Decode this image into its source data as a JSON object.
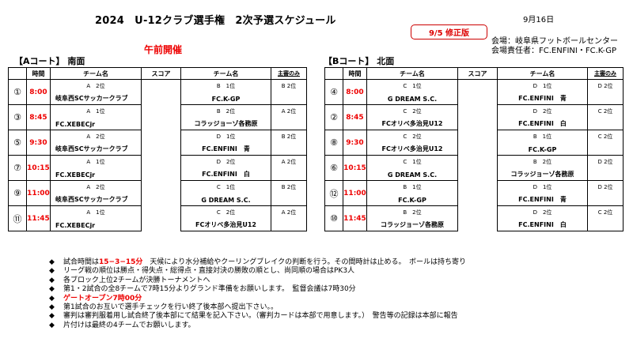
{
  "header": {
    "title": "2024　U-12クラブ選手権　2次予選スケジュール",
    "revision": "9/5 修正版",
    "date": "9月16日",
    "venue": "会場：岐阜県フットボールセンター",
    "manager": "会場責任者：FC.ENFINI・FC.K-GP",
    "morning": "午前開催"
  },
  "columns": {
    "time": "時間",
    "team": "チーム名",
    "score": "スコア",
    "referee": "主審のみ"
  },
  "court_a": {
    "label": "【Aコート】 南面",
    "rows": [
      {
        "num": "①",
        "time": "8:00",
        "seed1": "A　2位",
        "team1": "岐阜西SCサッカークラブ",
        "seed2": "B　1位",
        "team2": "FC.K-GP",
        "ref": "B 2位"
      },
      {
        "num": "③",
        "time": "8:45",
        "seed1": "A　1位",
        "team1": "FC.XEBECjr",
        "seed2": "B　2位",
        "team2": "コラッジョーゾ各務原",
        "ref": "A 2位"
      },
      {
        "num": "⑤",
        "time": "9:30",
        "seed1": "A　2位",
        "team1": "岐阜西SCサッカークラブ",
        "seed2": "D　1位",
        "team2": "FC.ENFINI　青",
        "ref": "B 2位"
      },
      {
        "num": "⑦",
        "time": "10:15",
        "seed1": "A　1位",
        "team1": "FC.XEBECjr",
        "seed2": "D　2位",
        "team2": "FC.ENFINI　白",
        "ref": "A 2位"
      },
      {
        "num": "⑨",
        "time": "11:00",
        "seed1": "A　2位",
        "team1": "岐阜西SCサッカークラブ",
        "seed2": "C　1位",
        "team2": "G DREAM S.C.",
        "ref": "B 2位"
      },
      {
        "num": "⑪",
        "time": "11:45",
        "seed1": "A　1位",
        "team1": "FC.XEBECjr",
        "seed2": "C　2位",
        "team2": "FCオリベ多治見U12",
        "ref": "A 2位"
      }
    ]
  },
  "court_b": {
    "label": "【Bコート】 北面",
    "rows": [
      {
        "num": "④",
        "time": "8:00",
        "seed1": "C　1位",
        "team1": "G DREAM S.C.",
        "seed2": "D　1位",
        "team2": "FC.ENFINI　青",
        "ref": "D 2位"
      },
      {
        "num": "②",
        "time": "8:45",
        "seed1": "C　2位",
        "team1": "FCオリベ多治見U12",
        "seed2": "D　2位",
        "team2": "FC.ENFINI　白",
        "ref": "C 2位"
      },
      {
        "num": "⑧",
        "time": "9:30",
        "seed1": "C　2位",
        "team1": "FCオリベ多治見U12",
        "seed2": "B　1位",
        "team2": "FC.K-GP",
        "ref": "C 2位"
      },
      {
        "num": "⑥",
        "time": "10:15",
        "seed1": "C　1位",
        "team1": "G DREAM S.C.",
        "seed2": "B　2位",
        "team2": "コラッジョーゾ各務原",
        "ref": "D 2位"
      },
      {
        "num": "⑫",
        "time": "11:00",
        "seed1": "B　1位",
        "team1": "FC.K-GP",
        "seed2": "D　1位",
        "team2": "FC.ENFINI　青",
        "ref": "D 2位"
      },
      {
        "num": "⑩",
        "time": "11:45",
        "seed1": "B　2位",
        "team1": "コラッジョーゾ各務原",
        "seed2": "D　2位",
        "team2": "FC.ENFINI　白",
        "ref": "C 2位"
      }
    ]
  },
  "notes": {
    "bullet": "◆",
    "n1_a": "試合時間は",
    "n1_b": "15−3−15分",
    "n1_c": "　天候により水分補給やクーリングブレイクの判断を行う。その間時計は止める。　ボールは持ち寄り",
    "n2": "リーグ戦の順位は勝点・得失点・総得点・直接対決の勝敗の順とし、尚同順の場合はPK3人",
    "n3": "各ブロック上位2チームが決勝トーナメントへ",
    "n4": "第1・2試合の全8チームで7時15分よりグランド準備をお願いします。　監督会議は7時30分",
    "n5": "ゲートオープン7時00分",
    "n6": "第1試合のお互いで選手チェックを行い終了後本部へ提出下さい。。",
    "n7": "審判は審判服着用し試合終了後本部にて結果を記入下さい。（審判カードは本部で用意します。）　警告等の記録は本部に報告",
    "n8": "片付けは最終の4チームでお願いします。"
  }
}
